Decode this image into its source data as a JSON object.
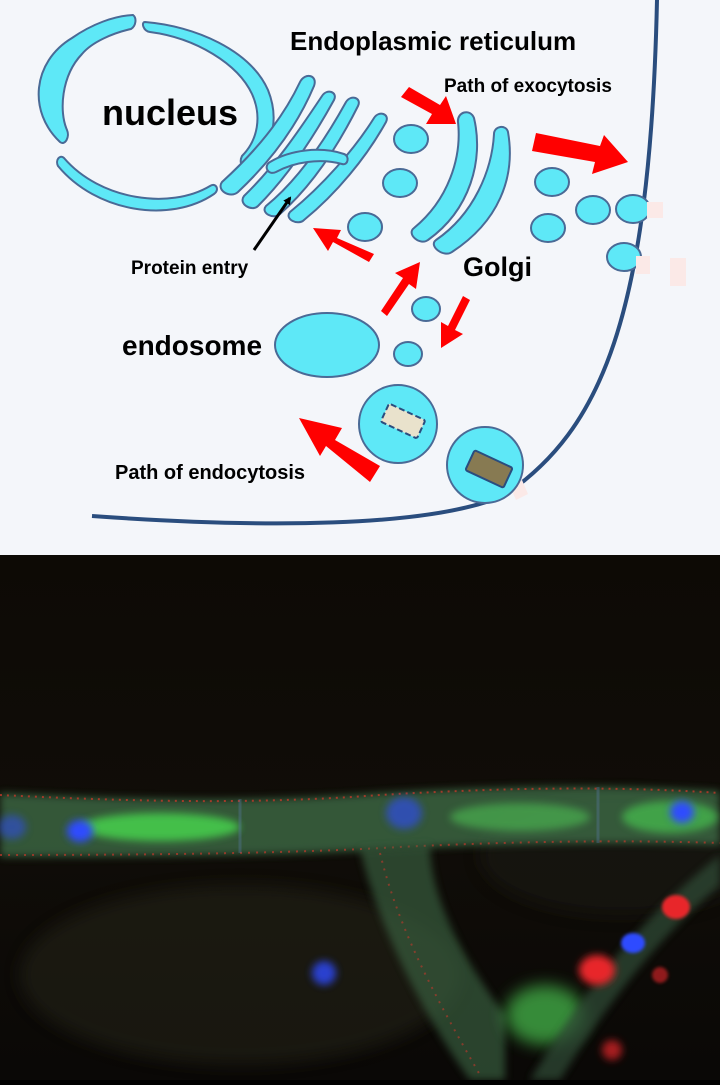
{
  "labels": {
    "er": "Endoplasmic reticulum",
    "exocytosis": "Path of exocytosis",
    "nucleus": "nucleus",
    "protein_entry": "Protein entry",
    "golgi": "Golgi",
    "endosome": "endosome",
    "endocytosis": "Path of endocytosis"
  },
  "colors": {
    "organelle_fill": "#5ee8f7",
    "organelle_stroke": "#4a6a96",
    "membrane": "#2a4d7e",
    "arrow_red": "#ff0000",
    "cargo": "#877a52",
    "cargo_light": "#e9e2cc",
    "background": "#f4f6fa",
    "micro_background": "#0e0a06",
    "green_channel": "#3fbf4a",
    "red_channel": "#e8262a",
    "blue_channel": "#2f4cff"
  }
}
